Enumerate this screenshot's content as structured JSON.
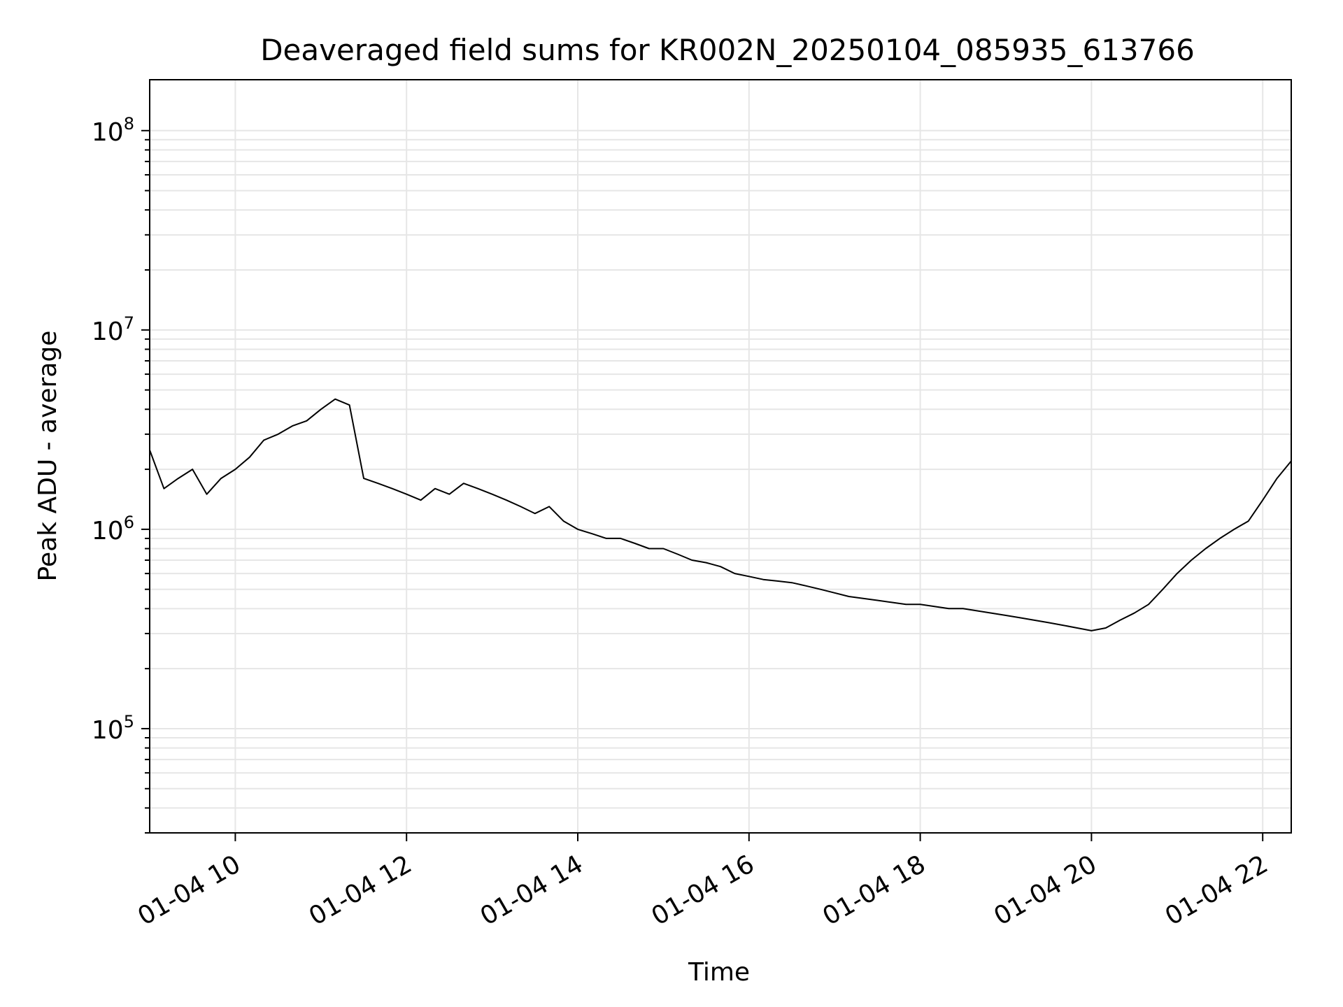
{
  "chart_data": {
    "type": "line",
    "title": "Deaveraged field sums for KR002N_20250104_085935_613766",
    "xlabel": "Time",
    "ylabel": "Peak ADU - average",
    "xlim": [
      "2025-01-04 09:00",
      "2025-01-04 22:20"
    ],
    "ylim": [
      30000,
      180000000
    ],
    "yscale": "log",
    "grid": true,
    "line_color": "#000000",
    "grid_color": "#e6e6e6",
    "x_ticks": [
      {
        "t": "2025-01-04 10:00",
        "label": "01-04 10"
      },
      {
        "t": "2025-01-04 12:00",
        "label": "01-04 12"
      },
      {
        "t": "2025-01-04 14:00",
        "label": "01-04 14"
      },
      {
        "t": "2025-01-04 16:00",
        "label": "01-04 16"
      },
      {
        "t": "2025-01-04 18:00",
        "label": "01-04 18"
      },
      {
        "t": "2025-01-04 20:00",
        "label": "01-04 20"
      },
      {
        "t": "2025-01-04 22:00",
        "label": "01-04 22"
      }
    ],
    "y_ticks": [
      {
        "value": 100000,
        "base": "10",
        "exp": "5"
      },
      {
        "value": 1000000,
        "base": "10",
        "exp": "6"
      },
      {
        "value": 10000000,
        "base": "10",
        "exp": "7"
      },
      {
        "value": 100000000,
        "base": "10",
        "exp": "8"
      }
    ],
    "series": [
      {
        "x": [
          "2025-01-04 09:00",
          "2025-01-04 09:10",
          "2025-01-04 09:20",
          "2025-01-04 09:30",
          "2025-01-04 09:40",
          "2025-01-04 09:50",
          "2025-01-04 10:00",
          "2025-01-04 10:10",
          "2025-01-04 10:20",
          "2025-01-04 10:30",
          "2025-01-04 10:40",
          "2025-01-04 10:50",
          "2025-01-04 11:00",
          "2025-01-04 11:10",
          "2025-01-04 11:20",
          "2025-01-04 11:30",
          "2025-01-04 11:40",
          "2025-01-04 11:50",
          "2025-01-04 12:00",
          "2025-01-04 12:10",
          "2025-01-04 12:20",
          "2025-01-04 12:30",
          "2025-01-04 12:40",
          "2025-01-04 12:50",
          "2025-01-04 13:00",
          "2025-01-04 13:10",
          "2025-01-04 13:20",
          "2025-01-04 13:30",
          "2025-01-04 13:40",
          "2025-01-04 13:50",
          "2025-01-04 14:00",
          "2025-01-04 14:10",
          "2025-01-04 14:20",
          "2025-01-04 14:30",
          "2025-01-04 14:40",
          "2025-01-04 14:50",
          "2025-01-04 15:00",
          "2025-01-04 15:10",
          "2025-01-04 15:20",
          "2025-01-04 15:30",
          "2025-01-04 15:40",
          "2025-01-04 15:50",
          "2025-01-04 16:00",
          "2025-01-04 16:10",
          "2025-01-04 16:20",
          "2025-01-04 16:30",
          "2025-01-04 16:40",
          "2025-01-04 16:50",
          "2025-01-04 17:00",
          "2025-01-04 17:10",
          "2025-01-04 17:20",
          "2025-01-04 17:30",
          "2025-01-04 17:40",
          "2025-01-04 17:50",
          "2025-01-04 18:00",
          "2025-01-04 18:10",
          "2025-01-04 18:20",
          "2025-01-04 18:30",
          "2025-01-04 18:40",
          "2025-01-04 18:50",
          "2025-01-04 19:00",
          "2025-01-04 19:10",
          "2025-01-04 19:20",
          "2025-01-04 19:30",
          "2025-01-04 19:40",
          "2025-01-04 19:50",
          "2025-01-04 20:00",
          "2025-01-04 20:10",
          "2025-01-04 20:20",
          "2025-01-04 20:30",
          "2025-01-04 20:40",
          "2025-01-04 20:50",
          "2025-01-04 21:00",
          "2025-01-04 21:10",
          "2025-01-04 21:20",
          "2025-01-04 21:30",
          "2025-01-04 21:40",
          "2025-01-04 21:50",
          "2025-01-04 22:00",
          "2025-01-04 22:10",
          "2025-01-04 22:20"
        ],
        "y": [
          2500000,
          1600000,
          1800000,
          2000000,
          1500000,
          1800000,
          2000000,
          2300000,
          2800000,
          3000000,
          3300000,
          3500000,
          4000000,
          4500000,
          4200000,
          1800000,
          1700000,
          1600000,
          1500000,
          1400000,
          1600000,
          1500000,
          1700000,
          1600000,
          1500000,
          1400000,
          1300000,
          1200000,
          1300000,
          1100000,
          1000000,
          950000,
          900000,
          900000,
          850000,
          800000,
          800000,
          750000,
          700000,
          680000,
          650000,
          600000,
          580000,
          560000,
          550000,
          540000,
          520000,
          500000,
          480000,
          460000,
          450000,
          440000,
          430000,
          420000,
          420000,
          410000,
          400000,
          400000,
          390000,
          380000,
          370000,
          360000,
          350000,
          340000,
          330000,
          320000,
          310000,
          320000,
          350000,
          380000,
          420000,
          500000,
          600000,
          700000,
          800000,
          900000,
          1000000,
          1100000,
          1400000,
          1800000,
          2200000
        ]
      }
    ]
  }
}
